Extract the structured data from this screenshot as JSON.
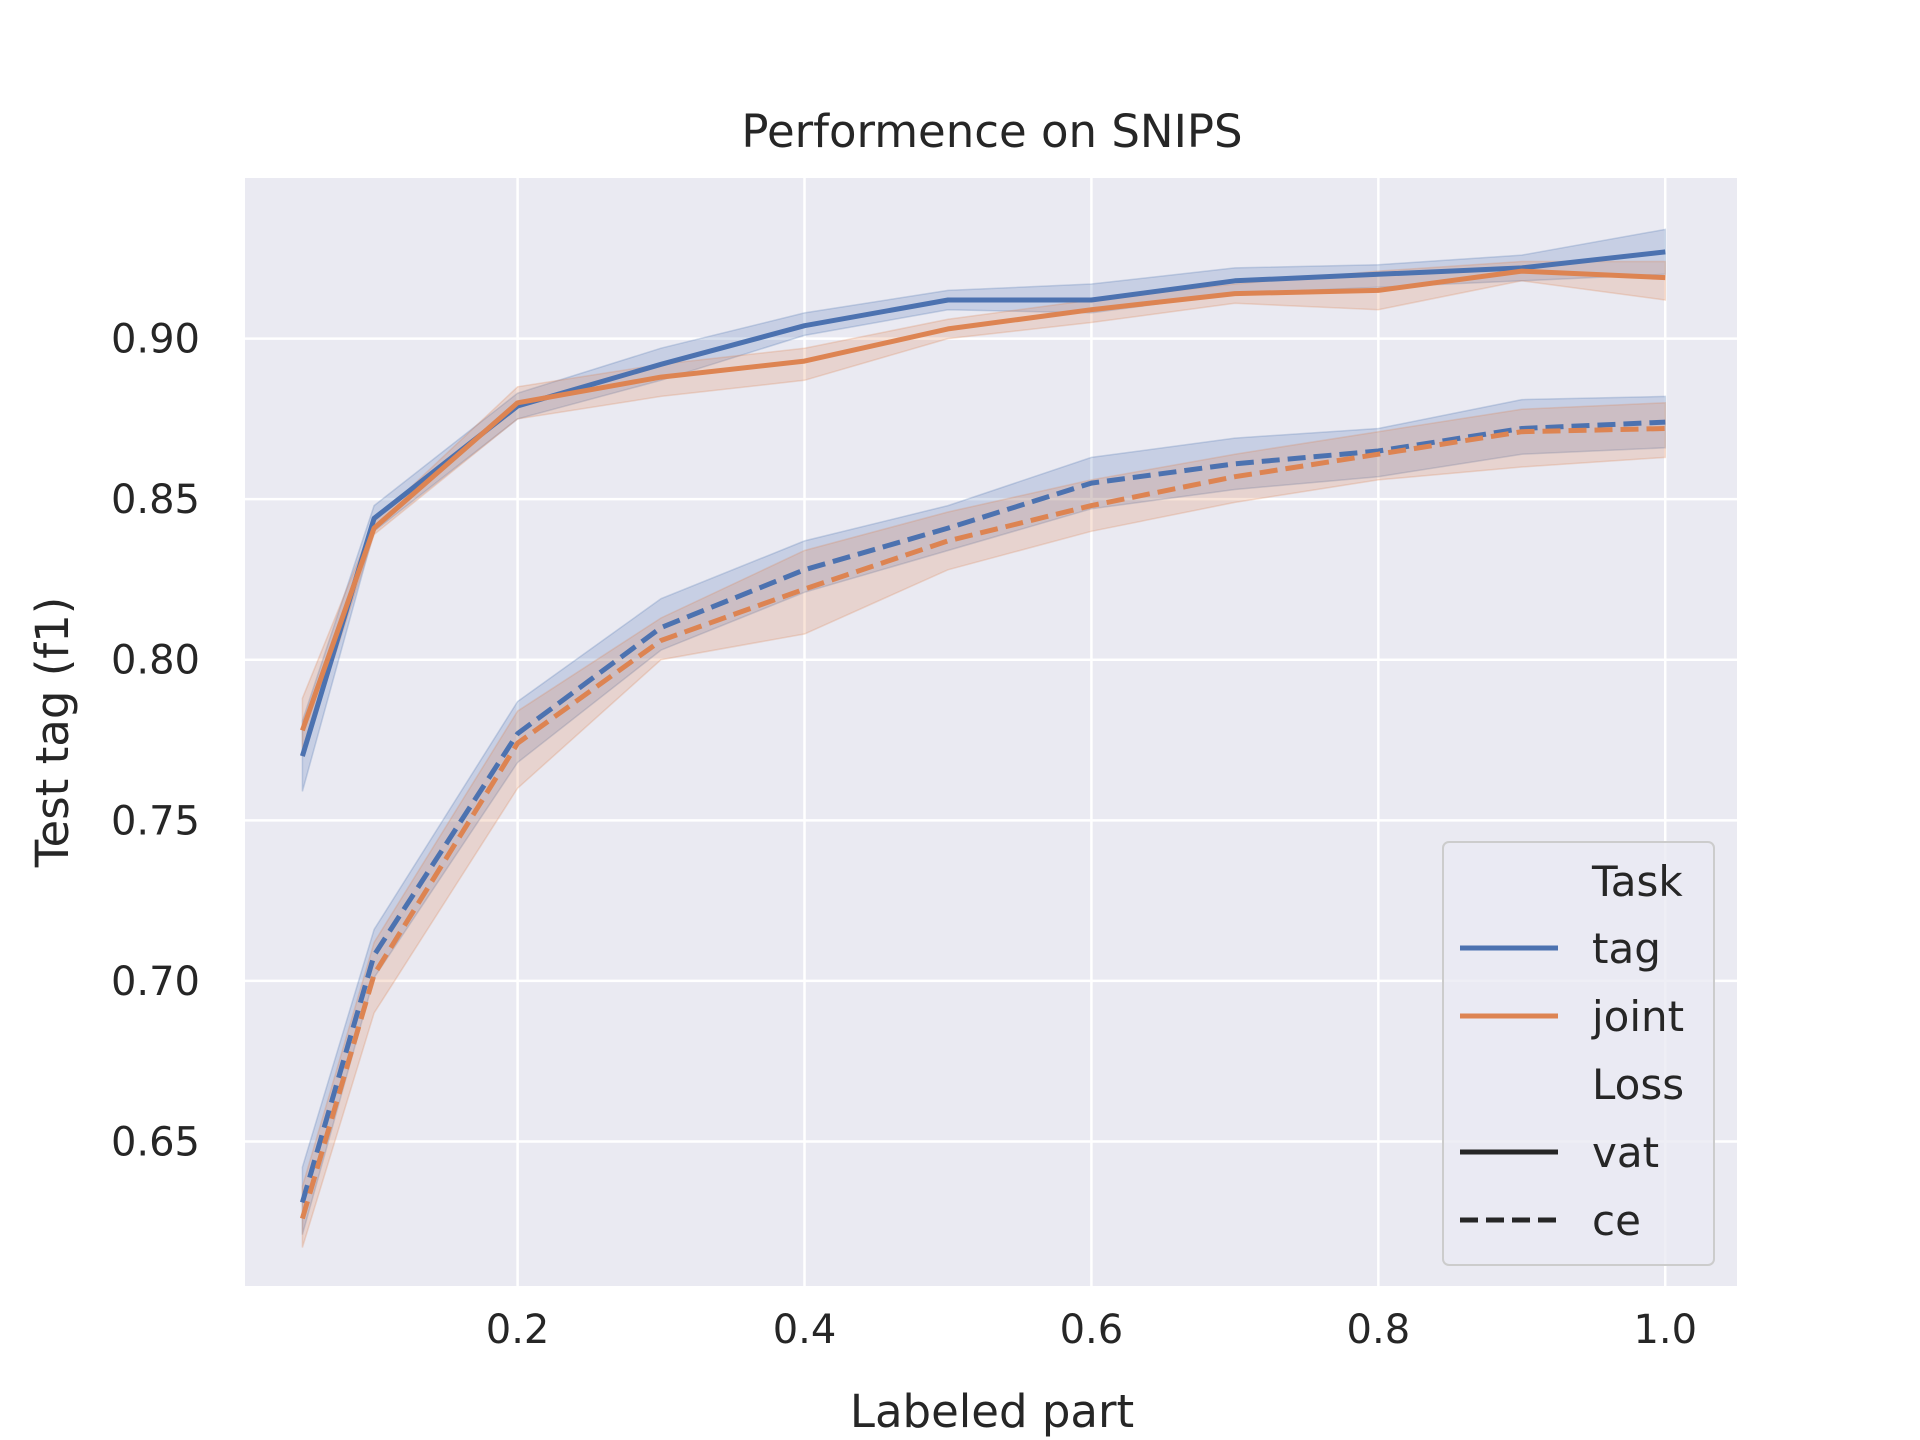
{
  "chart_data": {
    "type": "line",
    "title": "Performence on SNIPS",
    "xlabel": "Labeled part",
    "ylabel": "Test tag (f1)",
    "xlim": [
      0.01,
      1.05
    ],
    "ylim": [
      0.605,
      0.95
    ],
    "xticks": [
      0.2,
      0.4,
      0.6,
      0.8,
      1.0
    ],
    "xtick_labels": [
      "0.2",
      "0.4",
      "0.6",
      "0.8",
      "1.0"
    ],
    "yticks": [
      0.65,
      0.7,
      0.75,
      0.8,
      0.85,
      0.9
    ],
    "ytick_labels": [
      "0.65",
      "0.70",
      "0.75",
      "0.80",
      "0.85",
      "0.90"
    ],
    "grid": true,
    "legend_position": "bottom-right",
    "legend": {
      "task_header": "Task",
      "loss_header": "Loss",
      "entries": [
        {
          "label": "tag",
          "color": "#4c72b0",
          "style": "solid"
        },
        {
          "label": "joint",
          "color": "#dd8452",
          "style": "solid"
        },
        {
          "label": "vat",
          "color": "#262626",
          "style": "solid"
        },
        {
          "label": "ce",
          "color": "#262626",
          "style": "dashed"
        }
      ]
    },
    "x": [
      0.05,
      0.1,
      0.2,
      0.3,
      0.4,
      0.5,
      0.6,
      0.7,
      0.8,
      0.9,
      1.0
    ],
    "series": [
      {
        "task": "tag",
        "loss": "vat",
        "color": "#4c72b0",
        "dash": false,
        "values": [
          0.77,
          0.844,
          0.879,
          0.892,
          0.904,
          0.912,
          0.912,
          0.918,
          0.92,
          0.922,
          0.927
        ],
        "lower": [
          0.759,
          0.84,
          0.875,
          0.887,
          0.901,
          0.909,
          0.908,
          0.914,
          0.916,
          0.918,
          0.92
        ],
        "upper": [
          0.781,
          0.848,
          0.883,
          0.897,
          0.908,
          0.915,
          0.917,
          0.922,
          0.923,
          0.926,
          0.934
        ]
      },
      {
        "task": "joint",
        "loss": "vat",
        "color": "#dd8452",
        "dash": false,
        "values": [
          0.778,
          0.841,
          0.88,
          0.888,
          0.893,
          0.903,
          0.909,
          0.914,
          0.915,
          0.921,
          0.919
        ],
        "lower": [
          0.77,
          0.839,
          0.875,
          0.882,
          0.887,
          0.9,
          0.905,
          0.911,
          0.909,
          0.918,
          0.912
        ],
        "upper": [
          0.788,
          0.843,
          0.885,
          0.892,
          0.897,
          0.906,
          0.912,
          0.917,
          0.921,
          0.924,
          0.924
        ]
      },
      {
        "task": "tag",
        "loss": "ce",
        "color": "#4c72b0",
        "dash": true,
        "values": [
          0.631,
          0.708,
          0.777,
          0.81,
          0.828,
          0.841,
          0.855,
          0.861,
          0.865,
          0.872,
          0.874
        ],
        "lower": [
          0.621,
          0.701,
          0.768,
          0.803,
          0.821,
          0.834,
          0.847,
          0.853,
          0.857,
          0.864,
          0.866
        ],
        "upper": [
          0.642,
          0.716,
          0.787,
          0.819,
          0.837,
          0.848,
          0.863,
          0.869,
          0.872,
          0.881,
          0.882
        ]
      },
      {
        "task": "joint",
        "loss": "ce",
        "color": "#dd8452",
        "dash": true,
        "values": [
          0.626,
          0.702,
          0.774,
          0.806,
          0.822,
          0.837,
          0.848,
          0.857,
          0.864,
          0.871,
          0.872
        ],
        "lower": [
          0.617,
          0.69,
          0.76,
          0.8,
          0.808,
          0.828,
          0.84,
          0.849,
          0.856,
          0.86,
          0.863
        ],
        "upper": [
          0.636,
          0.712,
          0.784,
          0.813,
          0.834,
          0.846,
          0.856,
          0.864,
          0.871,
          0.878,
          0.88
        ]
      }
    ]
  }
}
